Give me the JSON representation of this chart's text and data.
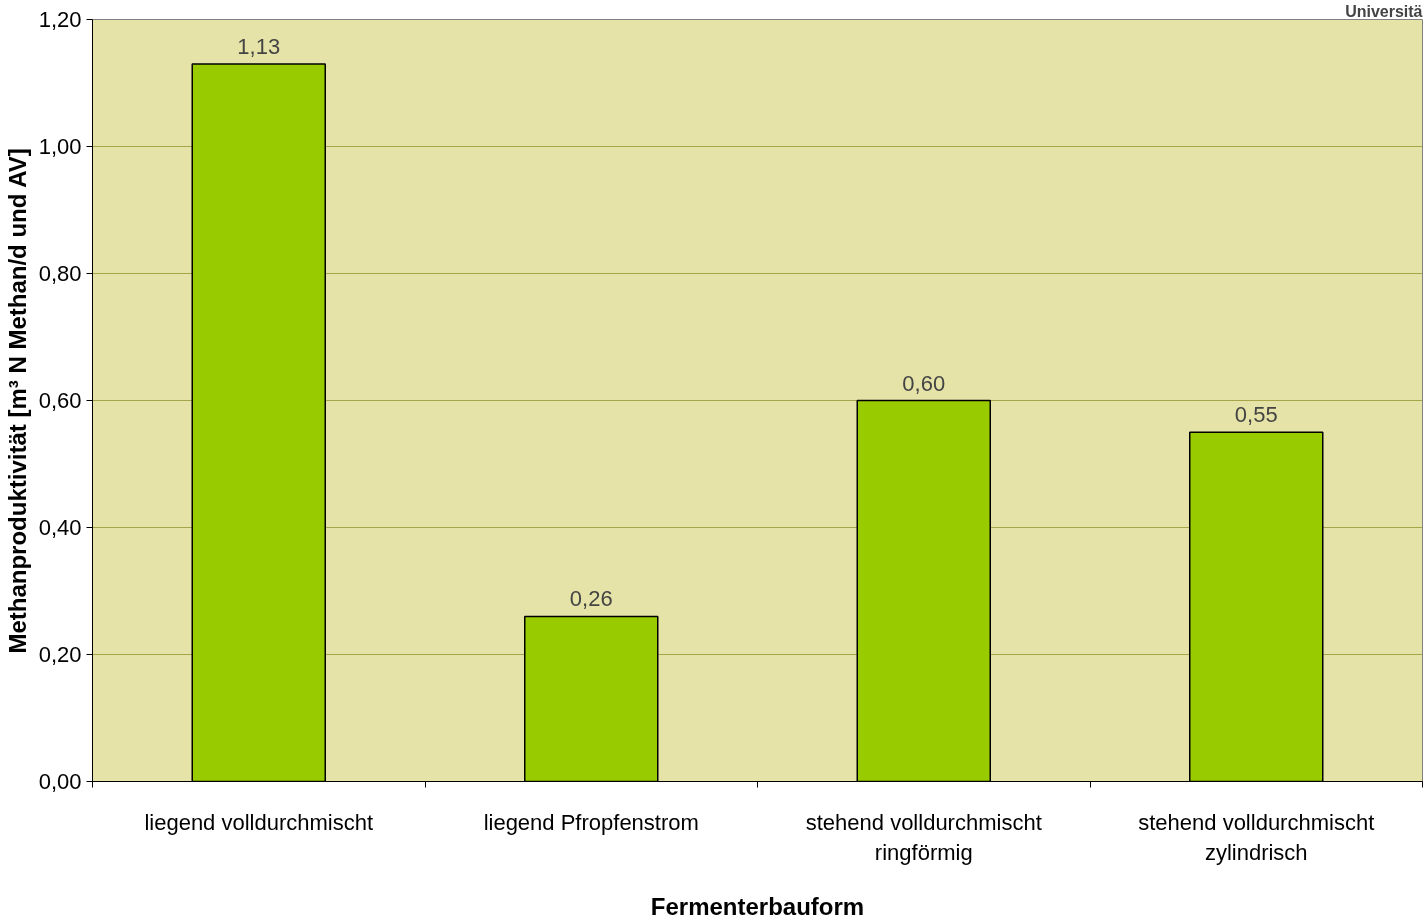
{
  "chart_data": {
    "type": "bar",
    "xlabel": "Fermenterbauform",
    "ylabel": "Methanproduktivität [m³ N Methan/d und AV]",
    "categories": [
      "liegend volldurchmischt",
      "liegend Pfropfenstrom",
      "stehend volldurchmischt\nringförmig",
      "stehend volldurchmischt\nzylindrisch"
    ],
    "values": [
      1.13,
      0.26,
      0.6,
      0.55
    ],
    "value_labels": [
      "1,13",
      "0,26",
      "0,60",
      "0,55"
    ],
    "color": "#99cc00",
    "ylim": [
      0,
      1.2
    ],
    "yticks": [
      {
        "value": 0,
        "label": "0,00"
      },
      {
        "value": 0.2,
        "label": "0,20"
      },
      {
        "value": 0.4,
        "label": "0,40"
      },
      {
        "value": 0.6,
        "label": "0,60"
      },
      {
        "value": 0.8,
        "label": "0,80"
      },
      {
        "value": 1.0,
        "label": "1,00"
      },
      {
        "value": 1.2,
        "label": "1,20"
      }
    ],
    "grid": "y",
    "annotations": [
      "Universitä"
    ]
  }
}
